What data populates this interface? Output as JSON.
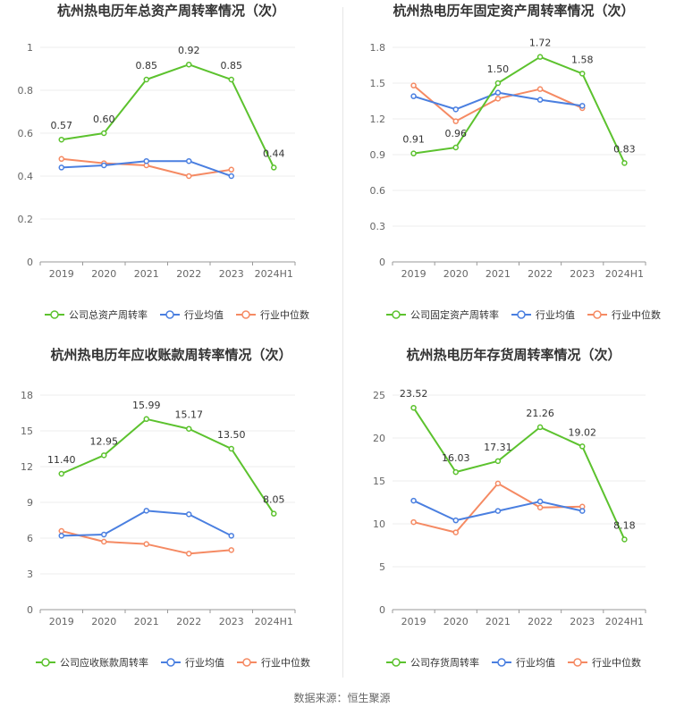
{
  "source": "数据来源：恒生聚源",
  "legend_common": {
    "avg": "行业均值",
    "median": "行业中位数"
  },
  "colors": {
    "company": "#5cc22e",
    "avg": "#4a7fe0",
    "median": "#f58a63"
  },
  "chart_data": [
    {
      "type": "line",
      "title": "杭州热电历年总资产周转率情况（次）",
      "categories": [
        "2019",
        "2020",
        "2021",
        "2022",
        "2023",
        "2024H1"
      ],
      "ylim": [
        0,
        1
      ],
      "yticks": [
        "0",
        "0.2",
        "0.4",
        "0.6",
        "0.8",
        "1"
      ],
      "series": [
        {
          "name": "公司总资产周转率",
          "values": [
            0.57,
            0.6,
            0.85,
            0.92,
            0.85,
            0.44
          ],
          "labels": [
            "0.57",
            "0.60",
            "0.85",
            "0.92",
            "0.85",
            "0.44"
          ]
        },
        {
          "name": "行业均值",
          "values": [
            0.44,
            0.45,
            0.47,
            0.47,
            0.4,
            null
          ]
        },
        {
          "name": "行业中位数",
          "values": [
            0.48,
            0.46,
            0.45,
            0.4,
            0.43,
            null
          ]
        }
      ]
    },
    {
      "type": "line",
      "title": "杭州热电历年固定资产周转率情况（次）",
      "categories": [
        "2019",
        "2020",
        "2021",
        "2022",
        "2023",
        "2024H1"
      ],
      "ylim": [
        0,
        1.8
      ],
      "yticks": [
        "0",
        "0.3",
        "0.6",
        "0.9",
        "1.2",
        "1.5",
        "1.8"
      ],
      "series": [
        {
          "name": "公司固定资产周转率",
          "values": [
            0.91,
            0.96,
            1.5,
            1.72,
            1.58,
            0.83
          ],
          "labels": [
            "0.91",
            "0.96",
            "1.50",
            "1.72",
            "1.58",
            "0.83"
          ]
        },
        {
          "name": "行业均值",
          "values": [
            1.39,
            1.28,
            1.42,
            1.36,
            1.31,
            null
          ]
        },
        {
          "name": "行业中位数",
          "values": [
            1.48,
            1.18,
            1.37,
            1.45,
            1.29,
            null
          ]
        }
      ]
    },
    {
      "type": "line",
      "title": "杭州热电历年应收账款周转率情况（次）",
      "categories": [
        "2019",
        "2020",
        "2021",
        "2022",
        "2023",
        "2024H1"
      ],
      "ylim": [
        0,
        18
      ],
      "yticks": [
        "0",
        "3",
        "6",
        "9",
        "12",
        "15",
        "18"
      ],
      "series": [
        {
          "name": "公司应收账款周转率",
          "values": [
            11.4,
            12.95,
            15.99,
            15.17,
            13.5,
            8.05
          ],
          "labels": [
            "11.40",
            "12.95",
            "15.99",
            "15.17",
            "13.50",
            "8.05"
          ]
        },
        {
          "name": "行业均值",
          "values": [
            6.2,
            6.3,
            8.3,
            8.0,
            6.2,
            null
          ]
        },
        {
          "name": "行业中位数",
          "values": [
            6.6,
            5.7,
            5.5,
            4.7,
            5.0,
            null
          ]
        }
      ]
    },
    {
      "type": "line",
      "title": "杭州热电历年存货周转率情况（次）",
      "categories": [
        "2019",
        "2020",
        "2021",
        "2022",
        "2023",
        "2024H1"
      ],
      "ylim": [
        0,
        25
      ],
      "yticks": [
        "0",
        "5",
        "10",
        "15",
        "20",
        "25"
      ],
      "series": [
        {
          "name": "公司存货周转率",
          "values": [
            23.52,
            16.03,
            17.31,
            21.26,
            19.02,
            8.18
          ],
          "labels": [
            "23.52",
            "16.03",
            "17.31",
            "21.26",
            "19.02",
            "8.18"
          ]
        },
        {
          "name": "行业均值",
          "values": [
            12.7,
            10.4,
            11.5,
            12.6,
            11.5,
            null
          ]
        },
        {
          "name": "行业中位数",
          "values": [
            10.2,
            9.0,
            14.7,
            11.9,
            12.0,
            null
          ]
        }
      ]
    }
  ]
}
